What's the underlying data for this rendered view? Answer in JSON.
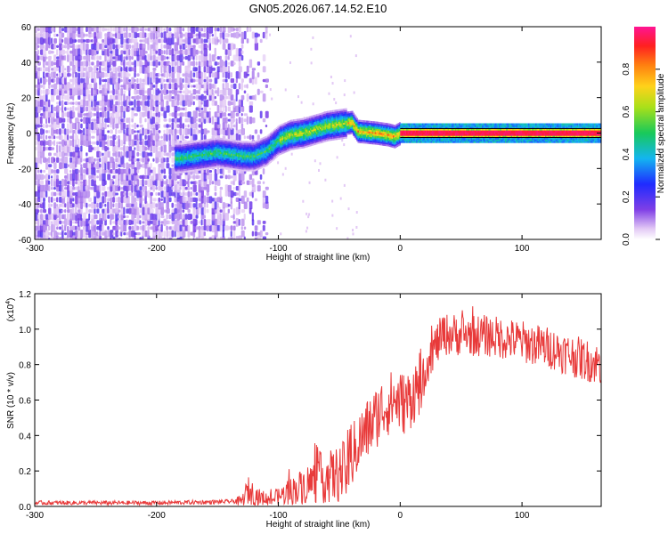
{
  "title": "GN05.2026.067.14.52.E10",
  "colors": {
    "line": "#e83a3a",
    "frame": "#000000",
    "background": "#ffffff"
  },
  "chart_data": [
    {
      "type": "heatmap",
      "title": "GN05.2026.067.14.52.E10",
      "xlabel": "Height of straight line (km)",
      "ylabel": "Frequency (Hz)",
      "xlim": [
        -300,
        165
      ],
      "ylim": [
        -60,
        60
      ],
      "xticks": [
        -300,
        -200,
        -100,
        0,
        100
      ],
      "yticks": [
        60,
        40,
        20,
        0,
        -20,
        -40,
        -60
      ],
      "ridge": {
        "x": [
          -180,
          -160,
          -150,
          -140,
          -130,
          -120,
          -110,
          -100,
          -90,
          -80,
          -70,
          -60,
          -50,
          -40,
          -35,
          -20,
          -10,
          -5,
          0,
          50,
          100,
          165
        ],
        "y": [
          -14,
          -12,
          -11,
          -12,
          -13,
          -13,
          -10,
          -4,
          -1,
          0,
          2,
          4,
          5,
          6,
          1,
          0,
          -1,
          -2,
          0,
          0,
          0,
          0
        ]
      },
      "colorbar": {
        "label": "Normalized spectral amplitude",
        "range": [
          0,
          1
        ],
        "ticks": [
          0.0,
          0.2,
          0.4,
          0.6,
          0.8
        ],
        "tick_labels": [
          "0.0",
          "0.2",
          "0.4",
          "0.6",
          "0.8"
        ]
      }
    },
    {
      "type": "line",
      "xlabel": "Height of straight line (km)",
      "ylabel": "SNR (10 * v/v)",
      "multiplier": "(x10",
      "multiplier_exp": "4",
      "multiplier_close": ")",
      "xlim": [
        -300,
        165
      ],
      "ylim": [
        0,
        1.2
      ],
      "xticks": [
        -300,
        -200,
        -100,
        0,
        100
      ],
      "yticks": [
        0.0,
        0.2,
        0.4,
        0.6,
        0.8,
        1.0,
        1.2
      ],
      "ytick_labels": [
        "0.0",
        "0.2",
        "0.4",
        "0.6",
        "0.8",
        "1.0",
        "1.2"
      ],
      "envelope": {
        "x": [
          -300,
          -250,
          -200,
          -150,
          -130,
          -125,
          -115,
          -105,
          -95,
          -85,
          -75,
          -65,
          -55,
          -45,
          -35,
          -25,
          -15,
          -5,
          5,
          15,
          25,
          35,
          50,
          75,
          100,
          125,
          150,
          165
        ],
        "y": [
          0.02,
          0.02,
          0.02,
          0.025,
          0.03,
          0.09,
          0.05,
          0.04,
          0.07,
          0.1,
          0.13,
          0.16,
          0.17,
          0.2,
          0.35,
          0.45,
          0.55,
          0.6,
          0.58,
          0.68,
          0.86,
          0.97,
          0.97,
          0.96,
          0.93,
          0.89,
          0.83,
          0.8
        ]
      }
    }
  ]
}
